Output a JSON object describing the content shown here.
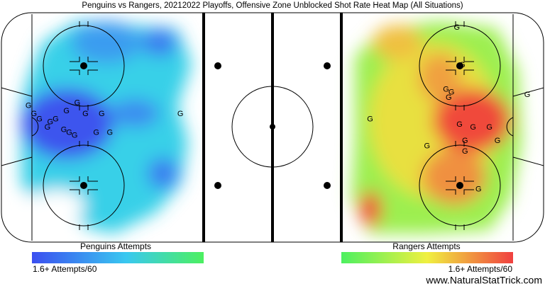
{
  "chart_data": {
    "type": "scatter",
    "title": "Penguins vs Rangers, 20212022 Playoffs, Offensive Zone Unblocked Shot Rate Heat Map (All Situations)",
    "marker_label": "G",
    "xlim": [
      -100,
      100
    ],
    "ylim": [
      -42.5,
      42.5
    ],
    "series": [
      {
        "name": "Penguins Attempts",
        "color": "#3b4ff0",
        "scale_label": "1.6+ Attempts/60",
        "x": [
          -90,
          -88,
          -86,
          -83,
          -82,
          -80,
          -77,
          -75,
          -73,
          -76,
          -69,
          -63,
          -72,
          -60,
          -65,
          -34
        ],
        "y": [
          8,
          5,
          3,
          0,
          2,
          3,
          -1,
          -2,
          -3,
          6,
          5,
          5,
          9,
          -2,
          -2,
          5
        ]
      },
      {
        "name": "Rangers Attempts",
        "color": "#f04040",
        "scale_label": "1.6+ Attempts/60",
        "x": [
          68,
          70,
          64,
          66,
          65,
          94,
          36,
          69,
          74,
          80,
          71,
          83,
          57,
          71,
          76
        ],
        "y": [
          37,
          23,
          14,
          13,
          11,
          12,
          3,
          1,
          0,
          0,
          -5,
          -5,
          -7,
          -9,
          -23
        ]
      }
    ],
    "source": "www.NaturalStatTrick.com"
  }
}
